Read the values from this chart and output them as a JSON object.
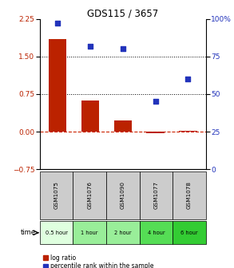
{
  "title": "GDS115 / 3657",
  "categories": [
    "GSM1075",
    "GSM1076",
    "GSM1090",
    "GSM1077",
    "GSM1078"
  ],
  "time_labels": [
    "0.5 hour",
    "1 hour",
    "2 hour",
    "4 hour",
    "6 hour"
  ],
  "time_colors": [
    "#dfffdf",
    "#99ee99",
    "#99ee99",
    "#55dd55",
    "#33cc33"
  ],
  "log_ratio": [
    1.85,
    0.62,
    0.22,
    -0.03,
    0.02
  ],
  "percentile": [
    97,
    82,
    80,
    45,
    60
  ],
  "bar_color": "#bb2200",
  "scatter_color": "#2233bb",
  "ylim_left": [
    -0.75,
    2.25
  ],
  "ylim_right": [
    0,
    100
  ],
  "yticks_left": [
    -0.75,
    0,
    0.75,
    1.5,
    2.25
  ],
  "yticks_right": [
    0,
    25,
    50,
    75,
    100
  ],
  "hline_y": [
    0.75,
    1.5
  ],
  "dashed_zero_color": "#cc2200",
  "legend_log_ratio": "log ratio",
  "legend_percentile": "percentile rank within the sample",
  "gsm_cell_color": "#cccccc",
  "time_label": "time"
}
